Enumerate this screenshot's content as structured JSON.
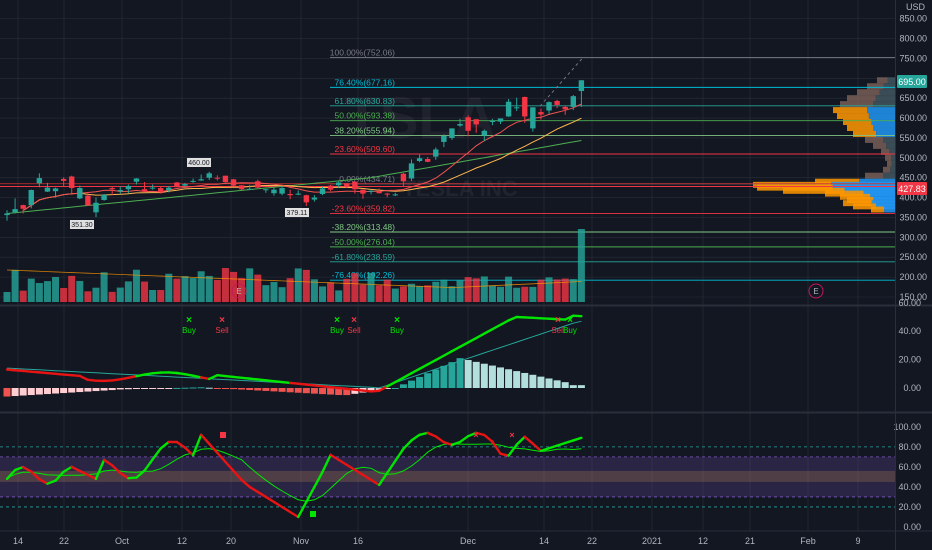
{
  "symbol_watermark": "TSLA",
  "symbol_sub": "TESLA INC",
  "price_axis": {
    "currency": "USD",
    "ticks": [
      "850.00",
      "800.00",
      "750.00",
      "700.00",
      "650.00",
      "600.00",
      "550.00",
      "500.00",
      "450.00",
      "400.00",
      "350.00",
      "300.00",
      "250.00",
      "200.00",
      "150.00"
    ],
    "last_price": "695.00",
    "last_price_color": "#26a69a",
    "marker_price": "427.83",
    "marker_color": "#f23645"
  },
  "fib_levels": [
    {
      "label": "100.00%(752.06)",
      "price": 752.06,
      "color": "#787b86"
    },
    {
      "label": "76.40%(677.16)",
      "price": 677.16,
      "color": "#00bcd4"
    },
    {
      "label": "61.80%(630.83)",
      "price": 630.83,
      "color": "#26a69a"
    },
    {
      "label": "50.00%(593.38)",
      "price": 593.38,
      "color": "#4caf50"
    },
    {
      "label": "38.20%(555.94)",
      "price": 555.94,
      "color": "#81c784"
    },
    {
      "label": "23.60%(509.60)",
      "price": 509.6,
      "color": "#f23645"
    },
    {
      "label": "0.00%(434.71)",
      "price": 434.71,
      "color": "#787b86"
    },
    {
      "label": "-23.60%(359.82)",
      "price": 359.82,
      "color": "#f23645"
    },
    {
      "label": "-38.20%(313.48)",
      "price": 313.48,
      "color": "#81c784"
    },
    {
      "label": "-50.00%(276.04)",
      "price": 276.04,
      "color": "#4caf50"
    },
    {
      "label": "-61.80%(238.59)",
      "price": 238.59,
      "color": "#26a69a"
    },
    {
      "label": "-76.40%(192.26)",
      "price": 192.26,
      "color": "#00bcd4"
    }
  ],
  "callouts": [
    "460.00",
    "351.30",
    "379.11"
  ],
  "earnings_label": "E",
  "macd_axis": {
    "ticks": [
      "60.00",
      "40.00",
      "20.00",
      "0.00"
    ]
  },
  "rsi_axis": {
    "ticks": [
      "100.00",
      "80.00",
      "60.00",
      "40.00",
      "20.00",
      "0.00"
    ]
  },
  "signals": {
    "buy": "Buy",
    "sell": "Sell",
    "cross": "×"
  },
  "time_axis": [
    "14",
    "22",
    "Oct",
    "12",
    "20",
    "Nov",
    "16",
    "Dec",
    "14",
    "22",
    "2021",
    "12",
    "21",
    "Feb",
    "9"
  ],
  "colors": {
    "bull": "#26a69a",
    "bear": "#f23645",
    "green_line": "#00e600",
    "red_line": "#e81414",
    "bg": "#131722",
    "grid": "#2a2e39"
  },
  "chart_data": {
    "type": "candlestick",
    "x": [
      "Sep 9",
      "Sep 10",
      "Sep 11",
      "Sep 14",
      "Sep 15",
      "Sep 16",
      "Sep 17",
      "Sep 18",
      "Sep 21",
      "Sep 22",
      "Sep 23",
      "Sep 24",
      "Sep 25",
      "Sep 28",
      "Sep 29",
      "Sep 30",
      "Oct 1",
      "Oct 2",
      "Oct 5",
      "Oct 6",
      "Oct 7",
      "Oct 8",
      "Oct 9",
      "Oct 12",
      "Oct 13",
      "Oct 14",
      "Oct 15",
      "Oct 16",
      "Oct 19",
      "Oct 20",
      "Oct 21",
      "Oct 22",
      "Oct 23",
      "Oct 26",
      "Oct 27",
      "Oct 28",
      "Oct 29",
      "Oct 30",
      "Nov 2",
      "Nov 3",
      "Nov 4",
      "Nov 5",
      "Nov 6",
      "Nov 9",
      "Nov 10",
      "Nov 11",
      "Nov 12",
      "Nov 13",
      "Nov 16",
      "Nov 17",
      "Nov 18",
      "Nov 19",
      "Nov 20",
      "Nov 23",
      "Nov 24",
      "Nov 25",
      "Nov 27",
      "Nov 30",
      "Dec 1",
      "Dec 2",
      "Dec 3",
      "Dec 4",
      "Dec 7",
      "Dec 8",
      "Dec 9",
      "Dec 10",
      "Dec 11",
      "Dec 14",
      "Dec 15",
      "Dec 16",
      "Dec 17",
      "Dec 18"
    ],
    "ohlc": [
      [
        356,
        368,
        342,
        360
      ],
      [
        363,
        398,
        360,
        371
      ],
      [
        381,
        382,
        360,
        372
      ],
      [
        381,
        420,
        373,
        419
      ],
      [
        436,
        461,
        426,
        449
      ],
      [
        415,
        437,
        414,
        425
      ],
      [
        416,
        425,
        400,
        423
      ],
      [
        447,
        451,
        428,
        442
      ],
      [
        453,
        455,
        407,
        424
      ],
      [
        398,
        430,
        396,
        424
      ],
      [
        405,
        412,
        379,
        380
      ],
      [
        363,
        400,
        351,
        387
      ],
      [
        394,
        409,
        392,
        407
      ],
      [
        424,
        428,
        406,
        421
      ],
      [
        416,
        428,
        410,
        419
      ],
      [
        421,
        433,
        411,
        429
      ],
      [
        440,
        449,
        433,
        448
      ],
      [
        421,
        439,
        414,
        415
      ],
      [
        423,
        433,
        420,
        425
      ],
      [
        424,
        428,
        410,
        413
      ],
      [
        419,
        429,
        413,
        425
      ],
      [
        438,
        439,
        428,
        426
      ],
      [
        430,
        437,
        427,
        434
      ],
      [
        442,
        448,
        437,
        442
      ],
      [
        443,
        458,
        442,
        446
      ],
      [
        450,
        465,
        444,
        461
      ],
      [
        450,
        456,
        443,
        448
      ],
      [
        455,
        455,
        438,
        439
      ],
      [
        446,
        447,
        429,
        430
      ],
      [
        431,
        431,
        419,
        421
      ],
      [
        422,
        432,
        421,
        422
      ],
      [
        441,
        445,
        424,
        425
      ],
      [
        421,
        422,
        412,
        421
      ],
      [
        411,
        425,
        405,
        420
      ],
      [
        410,
        426,
        406,
        424
      ],
      [
        409,
        420,
        396,
        406
      ],
      [
        409,
        418,
        406,
        410
      ],
      [
        406,
        407,
        379,
        388
      ],
      [
        395,
        406,
        390,
        400
      ],
      [
        409,
        427,
        406,
        423
      ],
      [
        430,
        432,
        416,
        420
      ],
      [
        431,
        441,
        425,
        438
      ],
      [
        436,
        436,
        424,
        429
      ],
      [
        440,
        441,
        410,
        421
      ],
      [
        420,
        420,
        397,
        410
      ],
      [
        416,
        420,
        408,
        417
      ],
      [
        415,
        423,
        410,
        411
      ],
      [
        410,
        412,
        401,
        408
      ],
      [
        408,
        412,
        404,
        408
      ],
      [
        460,
        462,
        428,
        441
      ],
      [
        448,
        496,
        442,
        486
      ],
      [
        492,
        508,
        489,
        499
      ],
      [
        497,
        502,
        489,
        490
      ],
      [
        503,
        526,
        495,
        521
      ],
      [
        540,
        559,
        527,
        555
      ],
      [
        550,
        574,
        545,
        574
      ],
      [
        581,
        598,
        578,
        585
      ],
      [
        602,
        607,
        554,
        568
      ],
      [
        597,
        597,
        563,
        584
      ],
      [
        556,
        571,
        542,
        568
      ],
      [
        590,
        598,
        582,
        593
      ],
      [
        591,
        599,
        585,
        599
      ],
      [
        604,
        648,
        603,
        641
      ],
      [
        625,
        651,
        618,
        627
      ],
      [
        653,
        654,
        588,
        604
      ],
      [
        574,
        627,
        566,
        627
      ],
      [
        615,
        624,
        596,
        609
      ],
      [
        619,
        642,
        610,
        640
      ],
      [
        643,
        646,
        625,
        633
      ],
      [
        628,
        632,
        608,
        622
      ],
      [
        628,
        658,
        620,
        655
      ],
      [
        668,
        695,
        628,
        695
      ]
    ],
    "fib_levels": {
      "100%": 752.06,
      "76.4%": 677.16,
      "61.8%": 630.83,
      "50%": 593.38,
      "38.2%": 555.94,
      "23.6%": 509.6,
      "0%": 434.71,
      "-23.6%": 359.82,
      "-38.2%": 313.48,
      "-50%": 276.04,
      "-61.8%": 238.59,
      "-76.4%": 192.26
    },
    "ylim": [
      130,
      870
    ],
    "macd_ylim": [
      -15,
      55
    ],
    "rsi_ylim": [
      0,
      108
    ]
  }
}
